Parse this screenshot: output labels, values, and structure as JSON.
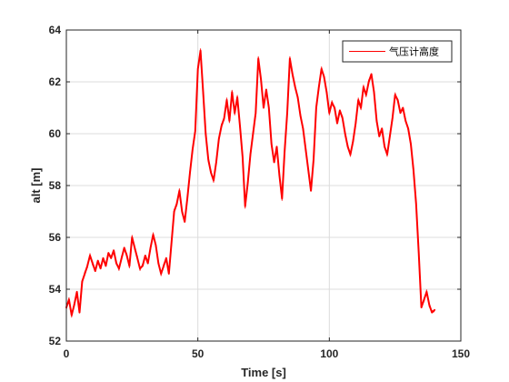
{
  "chart_data": {
    "type": "line",
    "title": "",
    "xlabel": "Time [s]",
    "ylabel": "alt [m]",
    "xlim": [
      0,
      150
    ],
    "ylim": [
      52,
      64
    ],
    "xticks": [
      0,
      50,
      100,
      150
    ],
    "yticks": [
      52,
      54,
      56,
      58,
      60,
      62,
      64
    ],
    "xtick_labels": [
      "0",
      "50",
      "100",
      "150"
    ],
    "ytick_labels": [
      "52",
      "54",
      "56",
      "58",
      "60",
      "62",
      "64"
    ],
    "grid": true,
    "legend_position": "top-right",
    "series": [
      {
        "name": "气压计高度",
        "color": "#ff0000",
        "x": [
          0,
          1,
          2,
          3,
          4,
          5,
          6,
          7,
          8,
          9,
          10,
          11,
          12,
          13,
          14,
          15,
          16,
          17,
          18,
          19,
          20,
          21,
          22,
          23,
          24,
          25,
          26,
          27,
          28,
          29,
          30,
          31,
          32,
          33,
          34,
          35,
          36,
          37,
          38,
          39,
          40,
          41,
          42,
          43,
          44,
          45,
          46,
          47,
          48,
          49,
          50,
          51,
          52,
          53,
          54,
          55,
          56,
          57,
          58,
          59,
          60,
          61,
          62,
          63,
          64,
          65,
          66,
          67,
          68,
          69,
          70,
          71,
          72,
          73,
          74,
          75,
          76,
          77,
          78,
          79,
          80,
          81,
          82,
          83,
          84,
          85,
          86,
          87,
          88,
          89,
          90,
          91,
          92,
          93,
          94,
          95,
          96,
          97,
          98,
          99,
          100,
          101,
          102,
          103,
          104,
          105,
          106,
          107,
          108,
          109,
          110,
          111,
          112,
          113,
          114,
          115,
          116,
          117,
          118,
          119,
          120,
          121,
          122,
          123,
          124,
          125,
          126,
          127,
          128,
          129,
          130,
          131,
          132,
          133,
          134,
          135,
          136,
          137,
          138,
          139,
          140
        ],
        "y": [
          53.3,
          53.6,
          53.0,
          53.4,
          53.9,
          53.1,
          54.3,
          54.6,
          54.9,
          55.3,
          55.0,
          54.7,
          55.1,
          54.8,
          55.2,
          54.9,
          55.4,
          55.2,
          55.5,
          55.0,
          54.8,
          55.2,
          55.6,
          55.3,
          54.9,
          56.0,
          55.6,
          55.2,
          54.8,
          54.9,
          55.3,
          55.0,
          55.6,
          56.1,
          55.7,
          55.0,
          54.6,
          54.9,
          55.2,
          54.6,
          55.8,
          57.0,
          57.3,
          57.8,
          57.0,
          56.6,
          57.5,
          58.5,
          59.4,
          60.1,
          62.5,
          63.2,
          61.6,
          60.0,
          59.0,
          58.5,
          58.2,
          58.9,
          59.8,
          60.3,
          60.6,
          61.3,
          60.5,
          61.6,
          60.8,
          61.4,
          60.3,
          59.1,
          57.2,
          58.1,
          59.2,
          60.0,
          60.8,
          62.9,
          62.1,
          61.0,
          61.7,
          61.0,
          59.6,
          58.9,
          59.5,
          58.4,
          57.5,
          59.3,
          60.8,
          62.9,
          62.3,
          61.8,
          61.4,
          60.7,
          60.2,
          59.4,
          58.6,
          57.8,
          59.0,
          61.0,
          61.8,
          62.5,
          62.2,
          61.6,
          60.8,
          61.2,
          61.0,
          60.4,
          60.9,
          60.6,
          60.0,
          59.5,
          59.2,
          59.7,
          60.4,
          61.3,
          61.0,
          61.8,
          61.5,
          62.0,
          62.3,
          61.6,
          60.5,
          59.9,
          60.2,
          59.5,
          59.2,
          59.9,
          60.6,
          61.5,
          61.3,
          60.8,
          61.0,
          60.5,
          60.2,
          59.6,
          58.6,
          57.3,
          55.4,
          53.3,
          53.6,
          53.9,
          53.4,
          53.1,
          53.2
        ]
      }
    ]
  }
}
